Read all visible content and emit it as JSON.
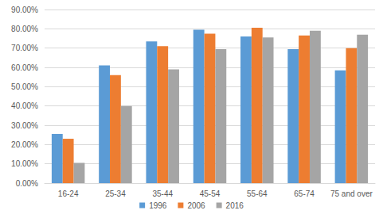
{
  "chart_data": {
    "type": "bar",
    "categories": [
      "16-24",
      "25-34",
      "35-44",
      "45-54",
      "55-64",
      "65-74",
      "75 and over"
    ],
    "series": [
      {
        "name": "1996",
        "color": "#5b9bd5",
        "values": [
          25.5,
          61,
          73.5,
          79.5,
          76,
          69.5,
          58.5
        ]
      },
      {
        "name": "2006",
        "color": "#ed7d31",
        "values": [
          23,
          56,
          71,
          77.5,
          80.5,
          76.5,
          70
        ]
      },
      {
        "name": "2016",
        "color": "#a5a5a5",
        "values": [
          10.5,
          40,
          59,
          69.5,
          75.5,
          79,
          77
        ]
      }
    ],
    "ylim": [
      0,
      90
    ],
    "yticks": [
      {
        "value": 0,
        "label": "0.00%"
      },
      {
        "value": 10,
        "label": "10.00%"
      },
      {
        "value": 20,
        "label": "20.00%"
      },
      {
        "value": 30,
        "label": "30.00%"
      },
      {
        "value": 40,
        "label": "40.00%"
      },
      {
        "value": 50,
        "label": "50.00%"
      },
      {
        "value": 60,
        "label": "60.00%"
      },
      {
        "value": 70,
        "label": "70.00%"
      },
      {
        "value": 80,
        "label": "80.00%"
      },
      {
        "value": 90,
        "label": "90.00%"
      }
    ],
    "grid": true,
    "legend": "bottom"
  }
}
